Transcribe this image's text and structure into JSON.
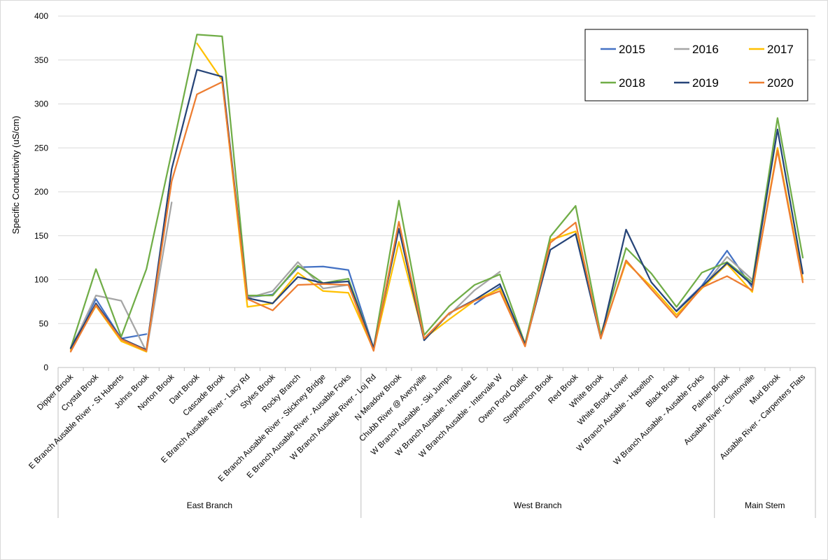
{
  "chart_data": {
    "type": "line",
    "title": "",
    "xlabel": "",
    "ylabel": "Specific Conductivity (uS/cm)",
    "ylim": [
      0,
      400
    ],
    "yticks": [
      0,
      50,
      100,
      150,
      200,
      250,
      300,
      350,
      400
    ],
    "grid": "horizontal",
    "legend_position": "top-right",
    "categories": [
      "Dipper Brook",
      "Crystal Brook",
      "E Branch Ausable River - St Huberts",
      "Johns Brook",
      "Norton Brook",
      "Dart Brook",
      "Cascade Brook",
      "E Branch Ausable River - Lacy Rd",
      "Styles Brook",
      "Rocky Branch",
      "E Branch Ausable River - Stickney Bridge",
      "E Branch Ausable River - Ausable Forks",
      "W Branch Ausable River - Loj Rd",
      "N Meadow Brook",
      "Chubb River @ Averyville",
      "W Branch Ausable - Ski Jumps",
      "W Branch Ausable - Intervale E",
      "W Branch Ausable - Intervale W",
      "Owen Pond Outlet",
      "Stephenson Brook",
      "Red Brook",
      "White Brook",
      "White Brook Lower",
      "W Branch Ausable - Haselton",
      "Black Brook",
      "W Branch Ausable - Ausable Forks",
      "Palmer Brook",
      "Ausable River - Clintonville",
      "Mud Brook",
      "Ausable River - Carpenters Flats"
    ],
    "groups": [
      {
        "label": "East Branch",
        "start": 0,
        "end": 11
      },
      {
        "label": "West Branch",
        "start": 12,
        "end": 25
      },
      {
        "label": "Main Stem",
        "start": 26,
        "end": 29
      }
    ],
    "series": [
      {
        "name": "2015",
        "color": "#4472C4",
        "values": [
          22,
          78,
          33,
          38,
          null,
          null,
          null,
          80,
          83,
          114,
          115,
          111,
          22,
          null,
          null,
          null,
          72,
          92,
          null,
          null,
          null,
          null,
          null,
          null,
          65,
          93,
          133,
          91,
          null,
          null
        ]
      },
      {
        "name": "2016",
        "color": "#A5A5A5",
        "values": [
          20,
          82,
          76,
          18,
          188,
          null,
          null,
          79,
          87,
          120,
          90,
          94,
          20,
          null,
          null,
          60,
          88,
          109,
          null,
          null,
          null,
          null,
          null,
          null,
          65,
          90,
          126,
          100,
          null,
          null
        ]
      },
      {
        "name": "2017",
        "color": "#FFC000",
        "values": [
          20,
          70,
          30,
          18,
          null,
          369,
          327,
          69,
          73,
          108,
          87,
          85,
          20,
          143,
          33,
          55,
          76,
          90,
          25,
          145,
          155,
          35,
          120,
          92,
          60,
          90,
          118,
          86,
          250,
          100
        ]
      },
      {
        "name": "2018",
        "color": "#70AD47",
        "values": [
          22,
          112,
          35,
          112,
          245,
          379,
          377,
          82,
          82,
          116,
          96,
          101,
          22,
          190,
          37,
          70,
          94,
          106,
          27,
          149,
          184,
          37,
          136,
          107,
          69,
          108,
          120,
          97,
          284,
          125
        ]
      },
      {
        "name": "2019",
        "color": "#264478",
        "values": [
          22,
          73,
          33,
          20,
          226,
          339,
          331,
          79,
          73,
          103,
          96,
          98,
          22,
          158,
          31,
          62,
          77,
          95,
          26,
          134,
          152,
          33,
          157,
          97,
          64,
          92,
          119,
          94,
          271,
          107
        ]
      },
      {
        "name": "2020",
        "color": "#ED7D31",
        "values": [
          18,
          71,
          32,
          19,
          212,
          311,
          325,
          78,
          65,
          94,
          95,
          94,
          19,
          166,
          33,
          62,
          76,
          87,
          24,
          142,
          165,
          33,
          122,
          89,
          57,
          91,
          104,
          88,
          247,
          97
        ]
      }
    ]
  }
}
